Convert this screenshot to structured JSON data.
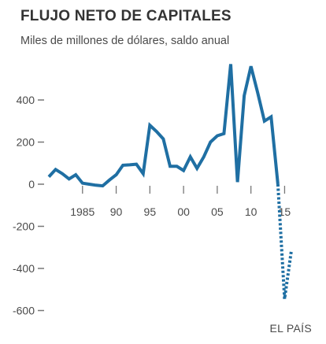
{
  "title": "FLUJO NETO DE CAPITALES",
  "subtitle": "Miles de millones de dólares, saldo anual",
  "source": "EL PAÍS",
  "colors": {
    "line": "#1f6fa3",
    "axis": "#777777",
    "text": "#4a4a4a"
  },
  "chart_data": {
    "type": "line",
    "title": "FLUJO NETO DE CAPITALES",
    "subtitle": "Miles de millones de dólares, saldo anual",
    "xlabel": "",
    "ylabel": "",
    "ylim": [
      -600,
      560
    ],
    "xlim": [
      1980,
      2016
    ],
    "grid": false,
    "y_ticks": [
      400,
      200,
      0,
      -200,
      -400,
      -600
    ],
    "y_tick_labels": [
      "400",
      "200",
      "0",
      "-200",
      "-400",
      "-600"
    ],
    "x_ticks": [
      1985,
      1990,
      1995,
      2000,
      2005,
      2010,
      2015
    ],
    "x_tick_labels": [
      "1985",
      "90",
      "95",
      "00",
      "05",
      "10",
      "15"
    ],
    "series": [
      {
        "style": "solid",
        "x": [
          1980,
          1981,
          1982,
          1983,
          1984,
          1985,
          1986,
          1987,
          1988,
          1989,
          1990,
          1991,
          1992,
          1993,
          1994,
          1995,
          1996,
          1997,
          1998,
          1999,
          2000,
          2001,
          2002,
          2003,
          2004,
          2005,
          2006,
          2007,
          2008,
          2009,
          2010,
          2011,
          2012,
          2013,
          2014
        ],
        "values": [
          35,
          70,
          50,
          25,
          45,
          5,
          0,
          -5,
          -8,
          20,
          45,
          90,
          92,
          95,
          50,
          280,
          250,
          215,
          85,
          85,
          65,
          130,
          75,
          130,
          200,
          230,
          240,
          570,
          10,
          420,
          560,
          435,
          300,
          320,
          0
        ]
      },
      {
        "style": "dotted",
        "x": [
          2014,
          2015,
          2016
        ],
        "values": [
          0,
          -545,
          -315
        ]
      }
    ]
  }
}
